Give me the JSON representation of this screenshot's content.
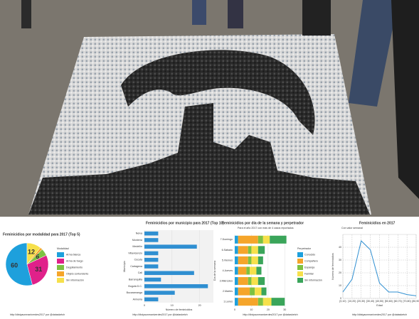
{
  "chart_data": [
    {
      "type": "pie",
      "title": "Feminicidios por modalidad para 2017 (Top 5)",
      "legend_title": "Modalidad",
      "categories": [
        "Arma blanca",
        "Arma de fuego",
        "Degollamiento",
        "Objeto contundente",
        "Sin información"
      ],
      "values": [
        60,
        31,
        6,
        2,
        12
      ],
      "colors": [
        "#1ea0dc",
        "#e0218a",
        "#7dc142",
        "#f5a52a",
        "#f6e04b"
      ],
      "caption": "http://distyaunmaniverdes2017 por @datasketch"
    },
    {
      "type": "bar",
      "orientation": "horizontal",
      "title": "Feminicidios por municipio para 2017 (Top 10)",
      "x_label": "Número de feminicidios",
      "y_label": "Municipio",
      "categories": [
        "Neiva",
        "Montería",
        "Medellín",
        "Villavicencio",
        "Cúcuta",
        "Cartagena",
        "Cali",
        "Barranquilla",
        "Bogotá D.C.",
        "Bucaramanga",
        "Armenia"
      ],
      "values": [
        5,
        5,
        19,
        5,
        5,
        5,
        18,
        6,
        23,
        11,
        5
      ],
      "color": "#2f8fd1",
      "xlim": [
        0,
        25
      ],
      "xticks": [
        0,
        10,
        20
      ],
      "grid": true,
      "caption": "http://distyaunmaniverdes2017 por @datasketch"
    },
    {
      "type": "bar",
      "orientation": "horizontal",
      "stacked": true,
      "title": "Feminicidios por día de la semana y perpetrador",
      "subtitle": "Para el año 2017 con más de 4 casos reportados",
      "y_label": "Día de la semana",
      "legend_title": "Perpetrador",
      "categories": [
        "7.Domingo",
        "6.Sábado",
        "5.Viernes",
        "4.Jueves",
        "3.Miércoles",
        "2.Martes",
        "1.Lunes"
      ],
      "series": [
        {
          "name": "Conocido",
          "color": "#1ea0dc",
          "values": [
            2,
            2,
            2,
            2,
            2,
            2,
            2
          ]
        },
        {
          "name": "Compañero",
          "color": "#f5a52a",
          "values": [
            12,
            6,
            6,
            5,
            6,
            7,
            12
          ]
        },
        {
          "name": "Expareja",
          "color": "#7dc142",
          "values": [
            3,
            2,
            2,
            2,
            2,
            3,
            3
          ]
        },
        {
          "name": "Familiar",
          "color": "#f6e04b",
          "values": [
            4,
            4,
            4,
            4,
            4,
            4,
            5
          ]
        },
        {
          "name": "Sin información",
          "color": "#3aa55a",
          "values": [
            10,
            4,
            3,
            3,
            4,
            3,
            8
          ]
        }
      ],
      "xlim": [
        0,
        35
      ],
      "xticks": [
        0,
        10,
        20,
        30
      ],
      "grid": true,
      "caption": "http://distyaunmaniverdes2017 por @datasketch"
    },
    {
      "type": "line",
      "title": "Feminicidios en 2017",
      "subtitle": "Con valor semanal",
      "x_label": "Edad",
      "y_label": "Número de feminicidios",
      "categories": [
        "[0,10)",
        "[10,20)",
        "[20,30)",
        "[30,40)",
        "[40,50)",
        "[50,60)",
        "[60,70)",
        "[70,80)",
        "[80,90)"
      ],
      "values": [
        5,
        15,
        45,
        38,
        12,
        5,
        5,
        3,
        2
      ],
      "color": "#2f8fd1",
      "ylim": [
        0,
        50
      ],
      "yticks": [
        0,
        10,
        20,
        30,
        40
      ],
      "grid": true,
      "caption": "http://distyaunmaniverdes2017 por @datasketch"
    }
  ]
}
